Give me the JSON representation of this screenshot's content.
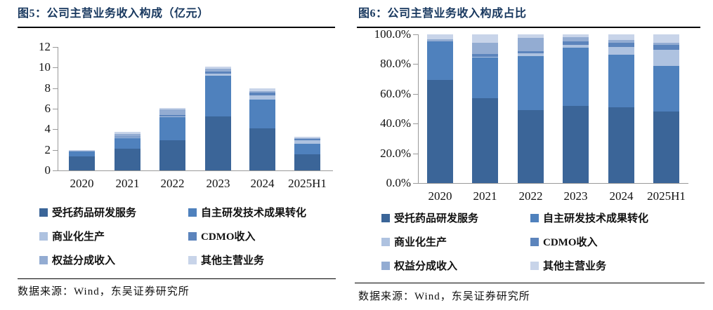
{
  "colors": {
    "title": "#17375E",
    "axis_line": "#9A9A9A",
    "rule": "#000000",
    "text": "#111111",
    "background": "#FFFFFF"
  },
  "panels": [
    {
      "title": "图5：公司主营业务收入构成（亿元）",
      "source": "数据来源：Wind，东吴证券研究所"
    },
    {
      "title": "图6：公司主营业务收入构成占比",
      "source": "数据来源：Wind，东吴证券研究所"
    }
  ],
  "chart_data": [
    {
      "type": "bar",
      "stacked": true,
      "normalized": false,
      "title": "图5：公司主营业务收入构成（亿元）",
      "categories": [
        "2020",
        "2021",
        "2022",
        "2023",
        "2024",
        "2025H1"
      ],
      "series": [
        {
          "name": "受托药品研发服务",
          "color": "#3B6598",
          "values": [
            1.35,
            2.14,
            2.96,
            5.24,
            4.06,
            1.58
          ]
        },
        {
          "name": "自主研发技术成果转化",
          "color": "#4F81BD",
          "values": [
            0.51,
            1.01,
            2.2,
            3.95,
            2.86,
            1.02
          ]
        },
        {
          "name": "商业化生产",
          "color": "#AEC2E0",
          "values": [
            0.0,
            0.03,
            0.12,
            0.19,
            0.39,
            0.36
          ]
        },
        {
          "name": "CDMO收入",
          "color": "#5C84BC",
          "values": [
            0.0,
            0.07,
            0.09,
            0.26,
            0.24,
            0.1
          ]
        },
        {
          "name": "权益分成收入",
          "color": "#93ACD2",
          "values": [
            0.03,
            0.27,
            0.53,
            0.27,
            0.14,
            0.06
          ]
        },
        {
          "name": "其他主营业务",
          "color": "#C8D4E9",
          "values": [
            0.06,
            0.22,
            0.15,
            0.19,
            0.31,
            0.18
          ]
        }
      ],
      "totals": [
        1.95,
        3.74,
        6.05,
        10.1,
        8.0,
        3.3
      ],
      "xlabel": "",
      "ylabel": "",
      "ylim": [
        0,
        12
      ],
      "yticks": [
        {
          "v": 0,
          "label": "0"
        },
        {
          "v": 2,
          "label": "2"
        },
        {
          "v": 4,
          "label": "4"
        },
        {
          "v": 6,
          "label": "6"
        },
        {
          "v": 8,
          "label": "8"
        },
        {
          "v": 10,
          "label": "10"
        },
        {
          "v": 12,
          "label": "12"
        }
      ],
      "grid": false,
      "legend_position": "bottom"
    },
    {
      "type": "bar",
      "stacked": true,
      "normalized": true,
      "title": "图6：公司主营业务收入构成占比",
      "categories": [
        "2020",
        "2021",
        "2022",
        "2023",
        "2024",
        "2025H1"
      ],
      "series": [
        {
          "name": "受托药品研发服务",
          "color": "#3B6598",
          "values": [
            1.35,
            2.14,
            2.96,
            5.24,
            4.06,
            1.58
          ]
        },
        {
          "name": "自主研发技术成果转化",
          "color": "#4F81BD",
          "values": [
            0.51,
            1.01,
            2.2,
            3.95,
            2.86,
            1.02
          ]
        },
        {
          "name": "商业化生产",
          "color": "#AEC2E0",
          "values": [
            0.0,
            0.03,
            0.12,
            0.19,
            0.39,
            0.36
          ]
        },
        {
          "name": "CDMO收入",
          "color": "#5C84BC",
          "values": [
            0.0,
            0.07,
            0.09,
            0.26,
            0.24,
            0.1
          ]
        },
        {
          "name": "权益分成收入",
          "color": "#93ACD2",
          "values": [
            0.03,
            0.27,
            0.53,
            0.27,
            0.14,
            0.06
          ]
        },
        {
          "name": "其他主营业务",
          "color": "#C8D4E9",
          "values": [
            0.06,
            0.22,
            0.15,
            0.19,
            0.31,
            0.18
          ]
        }
      ],
      "percent_share_first_series": [
        69.2,
        57.2,
        48.9,
        51.9,
        50.8,
        47.9
      ],
      "xlabel": "",
      "ylabel": "",
      "ylim": [
        0,
        100
      ],
      "yticks": [
        {
          "v": 0,
          "label": "0.0%"
        },
        {
          "v": 20,
          "label": "20.0%"
        },
        {
          "v": 40,
          "label": "40.0%"
        },
        {
          "v": 60,
          "label": "60.0%"
        },
        {
          "v": 80,
          "label": "80.0%"
        },
        {
          "v": 100,
          "label": "100.0%"
        }
      ],
      "grid": false,
      "legend_position": "bottom"
    }
  ]
}
